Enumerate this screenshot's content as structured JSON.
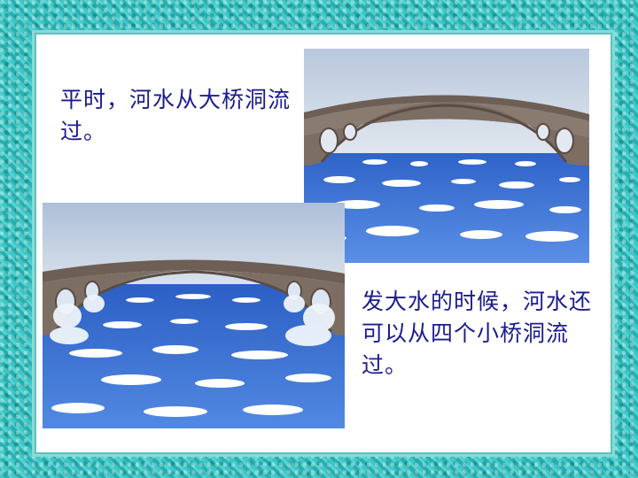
{
  "slide": {
    "text_top": "平时，河水从大桥洞流过。",
    "text_bottom": "发大水的时候，河水还可以从四个小桥洞流过。"
  },
  "colors": {
    "frame": "#3fc6c6",
    "text": "#1b1b8f",
    "sky": "#cfdbe9",
    "water": "#3d74d6",
    "bridge": "#7a6a60"
  },
  "images": {
    "top": "bridge-normal-water-illustration",
    "bottom": "bridge-flood-illustration"
  }
}
